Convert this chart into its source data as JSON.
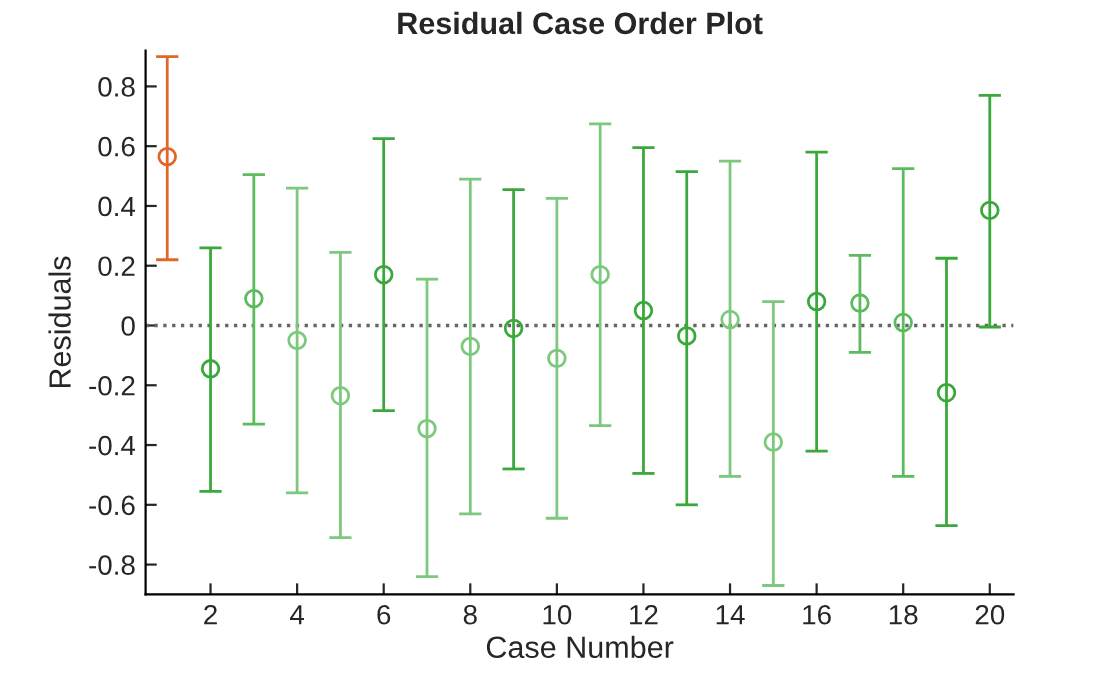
{
  "chart_data": {
    "type": "scatter",
    "title": "Residual Case Order Plot",
    "xlabel": "Case Number",
    "ylabel": "Residuals",
    "x": [
      1,
      2,
      3,
      4,
      5,
      6,
      7,
      8,
      9,
      10,
      11,
      12,
      13,
      14,
      15,
      16,
      17,
      18,
      19,
      20
    ],
    "values": [
      0.565,
      -0.145,
      0.09,
      -0.05,
      -0.235,
      0.17,
      -0.345,
      -0.07,
      -0.01,
      -0.11,
      0.17,
      0.05,
      -0.035,
      0.02,
      -0.39,
      0.08,
      0.075,
      0.01,
      -0.225,
      0.385
    ],
    "errors": [
      [
        0.22,
        0.9
      ],
      [
        -0.555,
        0.26
      ],
      [
        -0.33,
        0.505
      ],
      [
        -0.56,
        0.46
      ],
      [
        -0.71,
        0.245
      ],
      [
        -0.285,
        0.625
      ],
      [
        -0.84,
        0.155
      ],
      [
        -0.63,
        0.49
      ],
      [
        -0.48,
        0.455
      ],
      [
        -0.645,
        0.425
      ],
      [
        -0.335,
        0.675
      ],
      [
        -0.495,
        0.595
      ],
      [
        -0.6,
        0.515
      ],
      [
        -0.505,
        0.55
      ],
      [
        -0.87,
        0.08
      ],
      [
        -0.42,
        0.58
      ],
      [
        -0.09,
        0.235
      ],
      [
        -0.505,
        0.525
      ],
      [
        -0.67,
        0.225
      ],
      [
        -0.005,
        0.77
      ]
    ],
    "colors": [
      "#e0662a",
      "#3aa83a",
      "#5cbb5c",
      "#7cc87c",
      "#7cc87c",
      "#3aa83a",
      "#7cc87c",
      "#7cc87c",
      "#3aa83a",
      "#7cc87c",
      "#7cc87c",
      "#3aa83a",
      "#3aa83a",
      "#7cc87c",
      "#7cc87c",
      "#3aa83a",
      "#5cbb5c",
      "#5cbb5c",
      "#3aa83a",
      "#3aa83a"
    ],
    "marker": "circle",
    "xlim": [
      0.5,
      20.55
    ],
    "ylim": [
      -0.9,
      0.92
    ],
    "xticks": [
      2,
      4,
      6,
      8,
      10,
      12,
      14,
      16,
      18,
      20
    ],
    "yticks": [
      -0.8,
      -0.6,
      -0.4,
      -0.2,
      0,
      0.2,
      0.4,
      0.6,
      0.8
    ],
    "ref_lines": [
      {
        "axis": "y",
        "value": 0,
        "color": "#666666",
        "line_style": "dotted"
      }
    ],
    "grid": false,
    "legend": false
  }
}
